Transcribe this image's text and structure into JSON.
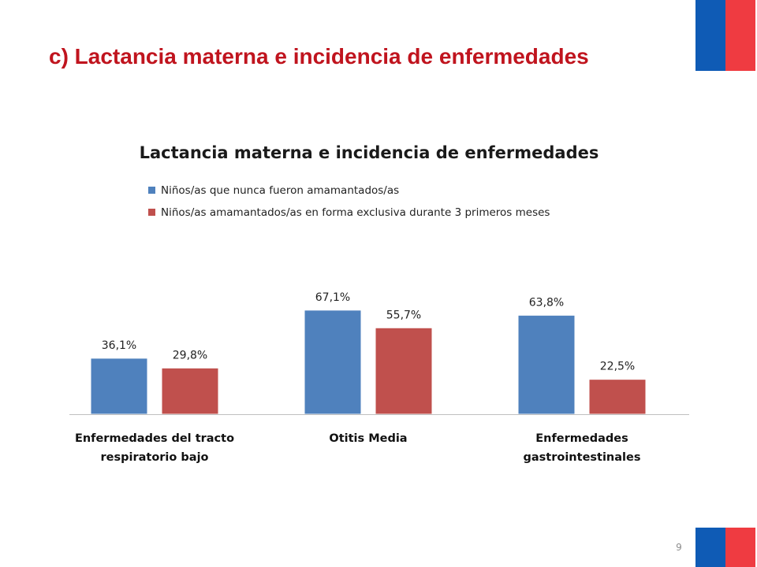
{
  "slide": {
    "title": "c) Lactancia materna e incidencia de enfermedades",
    "page_number": "9"
  },
  "colors": {
    "title_red": "#c0141e",
    "flag_blue": "#0f5bb5",
    "flag_red": "#ef3b41",
    "series_blue": "#4f81bd",
    "series_red": "#c0504d"
  },
  "chart_data": {
    "type": "bar",
    "title": "Lactancia materna e incidencia de enfermedades",
    "categories": [
      [
        "Enfermedades del tracto",
        "respiratorio bajo"
      ],
      [
        "Otitis Media"
      ],
      [
        "Enfermedades",
        "gastrointestinales"
      ]
    ],
    "series": [
      {
        "name": "Niños/as que nunca fueron amamantados/as",
        "color": "#4f81bd",
        "values": [
          36.1,
          67.1,
          63.8
        ],
        "labels": [
          "36,1%",
          "67,1%",
          "63,8%"
        ]
      },
      {
        "name": "Niños/as amamantados/as en forma exclusiva durante 3 primeros meses",
        "color": "#c0504d",
        "values": [
          29.8,
          55.7,
          22.5
        ],
        "labels": [
          "29,8%",
          "55,7%",
          "22,5%"
        ]
      }
    ],
    "legend_position": "top-left",
    "grid": false
  }
}
